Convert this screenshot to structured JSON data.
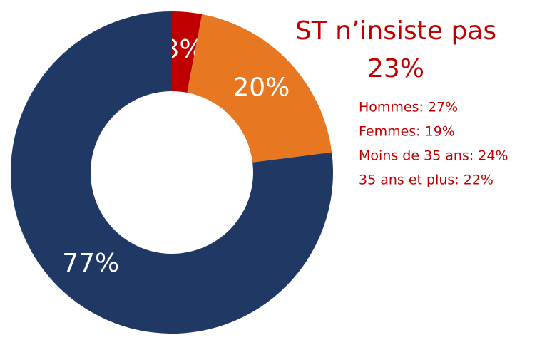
{
  "chart_data": {
    "type": "donut",
    "categories": [
      null,
      null,
      null
    ],
    "values": [
      3,
      20,
      77
    ],
    "value_labels": [
      "3%",
      "20%",
      "77%"
    ],
    "colors": [
      "#c00000",
      "#e87722",
      "#1f3864"
    ],
    "annotations": {
      "title": "ST n’insiste pas",
      "value": "23%",
      "details": [
        "Hommes: 27%",
        "Femmes: 19%",
        "Moins de 35 ans: 24%",
        "35 ans et plus: 22%"
      ]
    }
  }
}
